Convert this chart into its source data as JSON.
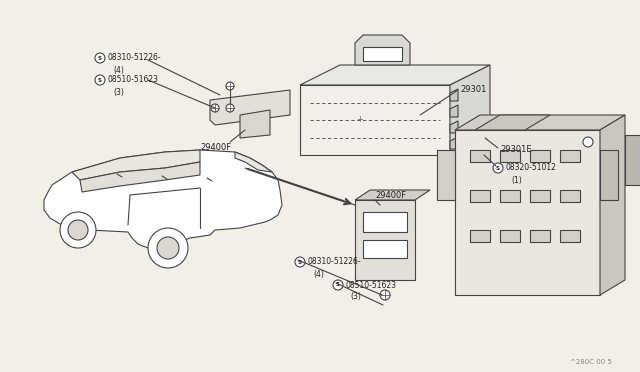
{
  "bg_color": "#f0efe8",
  "line_color": "#444444",
  "text_color": "#222222",
  "watermark": "^280C 00 5",
  "parts_labels": {
    "08310_top": "08310-51226-",
    "08310_top_sub": "(4)",
    "08510_top": "08510-51623",
    "08510_top_sub": "(3)",
    "29400F_top": "29400F",
    "29301": "29301",
    "29301E": "29301E",
    "08320": "08320-51012",
    "08320_sub": "(1)",
    "29400F_bot": "29400F",
    "08310_bot": "08310-51226-",
    "08310_bot_sub": "(4)",
    "08510_bot": "08510-51623",
    "08510_bot_sub": "(3)"
  }
}
